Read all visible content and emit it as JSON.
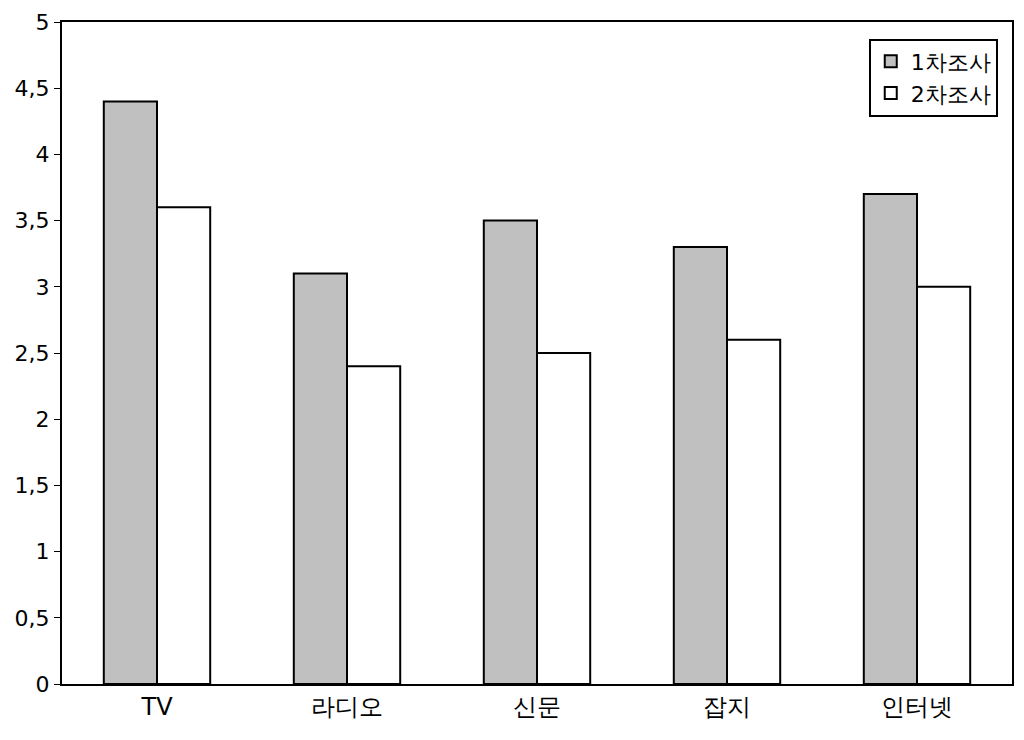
{
  "chart_data": {
    "type": "bar",
    "categories": [
      "TV",
      "라디오",
      "신문",
      "잡지",
      "인터넷"
    ],
    "series": [
      {
        "name": "1차조사",
        "color": "#c0c0c0",
        "values": [
          4.4,
          3.1,
          3.5,
          3.3,
          3.7
        ]
      },
      {
        "name": "2차조사",
        "color": "#ffffff",
        "values": [
          3.6,
          2.4,
          2.5,
          2.6,
          3.0
        ]
      }
    ],
    "ylim": [
      0,
      5
    ],
    "yticks": [
      0,
      {
        "value": 0.5,
        "label": "0,5"
      },
      1,
      {
        "value": 1.5,
        "label": "1,5"
      },
      2,
      {
        "value": 2.5,
        "label": "2,5"
      },
      3,
      {
        "value": 3.5,
        "label": "3,5"
      },
      4,
      {
        "value": 4.5,
        "label": "4,5"
      },
      5
    ],
    "grid": false,
    "legend": "top-right"
  }
}
